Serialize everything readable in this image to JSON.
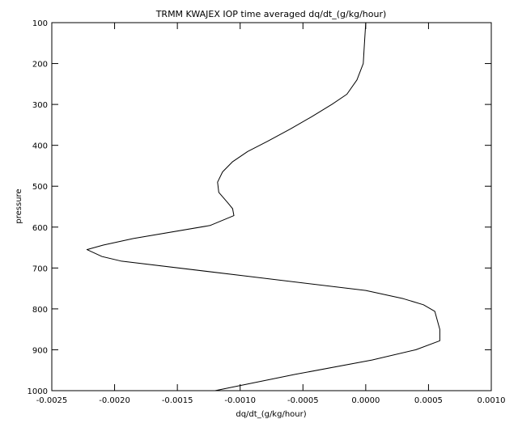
{
  "chart_data": {
    "type": "line",
    "title": "TRMM KWAJEX IOP time averaged dq/dt_(g/kg/hour)",
    "xlabel": "dq/dt_(g/kg/hour)",
    "ylabel": "pressure",
    "xlim": [
      -0.0025,
      0.001
    ],
    "ylim": [
      1000,
      100
    ],
    "y_reversed": true,
    "grid": false,
    "x_ticks": [
      -0.0025,
      -0.002,
      -0.0015,
      -0.001,
      -0.0005,
      0.0,
      0.0005,
      0.001
    ],
    "x_tick_labels": [
      "-0.0025",
      "-0.0020",
      "-0.0015",
      "-0.0010",
      "-0.0005",
      "0.0000",
      "0.0005",
      "0.0010"
    ],
    "y_ticks": [
      100,
      200,
      300,
      400,
      500,
      600,
      700,
      800,
      900,
      1000
    ],
    "y_tick_labels": [
      "100",
      "200",
      "300",
      "400",
      "500",
      "600",
      "700",
      "800",
      "900",
      "1000"
    ],
    "series": [
      {
        "color": "#000000",
        "points": [
          {
            "x": 0.0,
            "y": 100
          },
          {
            "x": -1e-05,
            "y": 150
          },
          {
            "x": -2e-05,
            "y": 200
          },
          {
            "x": -7e-05,
            "y": 240
          },
          {
            "x": -0.00015,
            "y": 275
          },
          {
            "x": -0.00027,
            "y": 300
          },
          {
            "x": -0.00043,
            "y": 330
          },
          {
            "x": -0.0006,
            "y": 360
          },
          {
            "x": -0.00078,
            "y": 390
          },
          {
            "x": -0.00094,
            "y": 415
          },
          {
            "x": -0.00106,
            "y": 440
          },
          {
            "x": -0.00114,
            "y": 465
          },
          {
            "x": -0.00118,
            "y": 490
          },
          {
            "x": -0.00117,
            "y": 515
          },
          {
            "x": -0.0011,
            "y": 540
          },
          {
            "x": -0.00106,
            "y": 555
          },
          {
            "x": -0.00105,
            "y": 572
          },
          {
            "x": -0.00124,
            "y": 596
          },
          {
            "x": -0.00185,
            "y": 628
          },
          {
            "x": -0.00209,
            "y": 644
          },
          {
            "x": -0.00222,
            "y": 655
          },
          {
            "x": -0.0021,
            "y": 672
          },
          {
            "x": -0.00195,
            "y": 683
          },
          {
            "x": -0.00095,
            "y": 720
          },
          {
            "x": 0.0,
            "y": 755
          },
          {
            "x": 0.0003,
            "y": 775
          },
          {
            "x": 0.00046,
            "y": 790
          },
          {
            "x": 0.00055,
            "y": 806
          },
          {
            "x": 0.00059,
            "y": 850
          },
          {
            "x": 0.00059,
            "y": 878
          },
          {
            "x": 0.0004,
            "y": 900
          },
          {
            "x": 5e-05,
            "y": 925
          },
          {
            "x": -0.00056,
            "y": 960
          },
          {
            "x": -0.0012,
            "y": 1000
          }
        ]
      }
    ]
  }
}
